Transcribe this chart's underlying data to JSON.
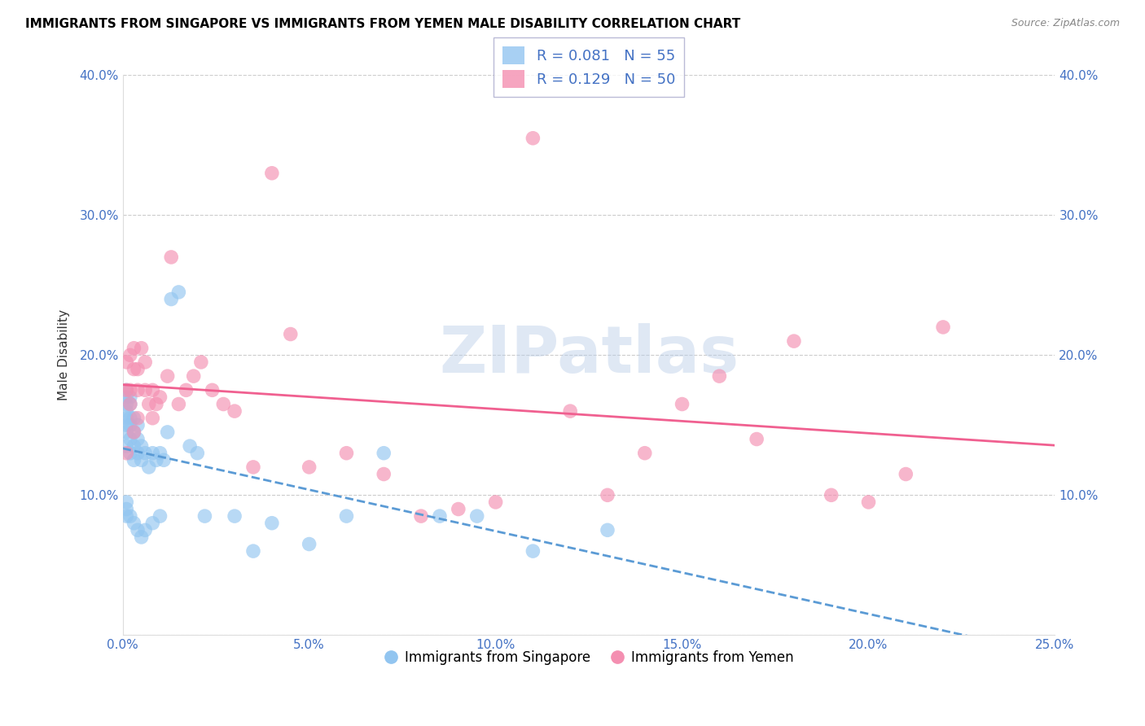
{
  "title": "IMMIGRANTS FROM SINGAPORE VS IMMIGRANTS FROM YEMEN MALE DISABILITY CORRELATION CHART",
  "source": "Source: ZipAtlas.com",
  "ylabel": "Male Disability",
  "xlim": [
    0.0,
    0.25
  ],
  "ylim": [
    0.0,
    0.4
  ],
  "xticks": [
    0.0,
    0.05,
    0.1,
    0.15,
    0.2,
    0.25
  ],
  "yticks": [
    0.0,
    0.1,
    0.2,
    0.3,
    0.4
  ],
  "xtick_labels": [
    "0.0%",
    "5.0%",
    "10.0%",
    "15.0%",
    "20.0%",
    "25.0%"
  ],
  "ytick_labels_left": [
    "",
    "10.0%",
    "20.0%",
    "30.0%",
    "40.0%"
  ],
  "ytick_labels_right": [
    "10.0%",
    "20.0%",
    "30.0%",
    "40.0%"
  ],
  "right_yticks": [
    0.1,
    0.2,
    0.3,
    0.4
  ],
  "singapore_color": "#92C5F0",
  "yemen_color": "#F48FB1",
  "singapore_R": 0.081,
  "singapore_N": 55,
  "yemen_R": 0.129,
  "yemen_N": 50,
  "singapore_x": [
    0.001,
    0.001,
    0.001,
    0.001,
    0.001,
    0.001,
    0.001,
    0.001,
    0.002,
    0.002,
    0.002,
    0.002,
    0.002,
    0.002,
    0.003,
    0.003,
    0.003,
    0.003,
    0.004,
    0.004,
    0.004,
    0.005,
    0.005,
    0.006,
    0.007,
    0.008,
    0.009,
    0.01,
    0.011,
    0.012,
    0.013,
    0.015,
    0.018,
    0.02,
    0.022,
    0.03,
    0.035,
    0.04,
    0.05,
    0.06,
    0.07,
    0.085,
    0.095,
    0.11,
    0.13,
    0.001,
    0.001,
    0.001,
    0.002,
    0.003,
    0.004,
    0.005,
    0.006,
    0.008,
    0.01
  ],
  "singapore_y": [
    0.135,
    0.145,
    0.15,
    0.155,
    0.16,
    0.165,
    0.17,
    0.175,
    0.13,
    0.14,
    0.15,
    0.155,
    0.165,
    0.17,
    0.125,
    0.135,
    0.145,
    0.155,
    0.13,
    0.14,
    0.15,
    0.125,
    0.135,
    0.13,
    0.12,
    0.13,
    0.125,
    0.13,
    0.125,
    0.145,
    0.24,
    0.245,
    0.135,
    0.13,
    0.085,
    0.085,
    0.06,
    0.08,
    0.065,
    0.085,
    0.13,
    0.085,
    0.085,
    0.06,
    0.075,
    0.085,
    0.09,
    0.095,
    0.085,
    0.08,
    0.075,
    0.07,
    0.075,
    0.08,
    0.085
  ],
  "yemen_x": [
    0.001,
    0.001,
    0.002,
    0.002,
    0.003,
    0.003,
    0.004,
    0.004,
    0.005,
    0.006,
    0.007,
    0.008,
    0.009,
    0.01,
    0.012,
    0.013,
    0.015,
    0.017,
    0.019,
    0.021,
    0.024,
    0.027,
    0.03,
    0.035,
    0.04,
    0.045,
    0.05,
    0.06,
    0.07,
    0.08,
    0.09,
    0.1,
    0.11,
    0.12,
    0.13,
    0.14,
    0.15,
    0.16,
    0.17,
    0.18,
    0.19,
    0.2,
    0.21,
    0.22,
    0.001,
    0.002,
    0.003,
    0.004,
    0.006,
    0.008
  ],
  "yemen_y": [
    0.175,
    0.195,
    0.175,
    0.2,
    0.19,
    0.205,
    0.175,
    0.19,
    0.205,
    0.195,
    0.165,
    0.175,
    0.165,
    0.17,
    0.185,
    0.27,
    0.165,
    0.175,
    0.185,
    0.195,
    0.175,
    0.165,
    0.16,
    0.12,
    0.33,
    0.215,
    0.12,
    0.13,
    0.115,
    0.085,
    0.09,
    0.095,
    0.355,
    0.16,
    0.1,
    0.13,
    0.165,
    0.185,
    0.14,
    0.21,
    0.1,
    0.095,
    0.115,
    0.22,
    0.13,
    0.165,
    0.145,
    0.155,
    0.175,
    0.155
  ],
  "watermark": "ZIPatlas",
  "title_fontsize": 11,
  "axis_label_color": "#4472C4",
  "grid_color": "#CCCCCC",
  "singapore_line_color": "#5B9BD5",
  "yemen_line_color": "#F06090"
}
